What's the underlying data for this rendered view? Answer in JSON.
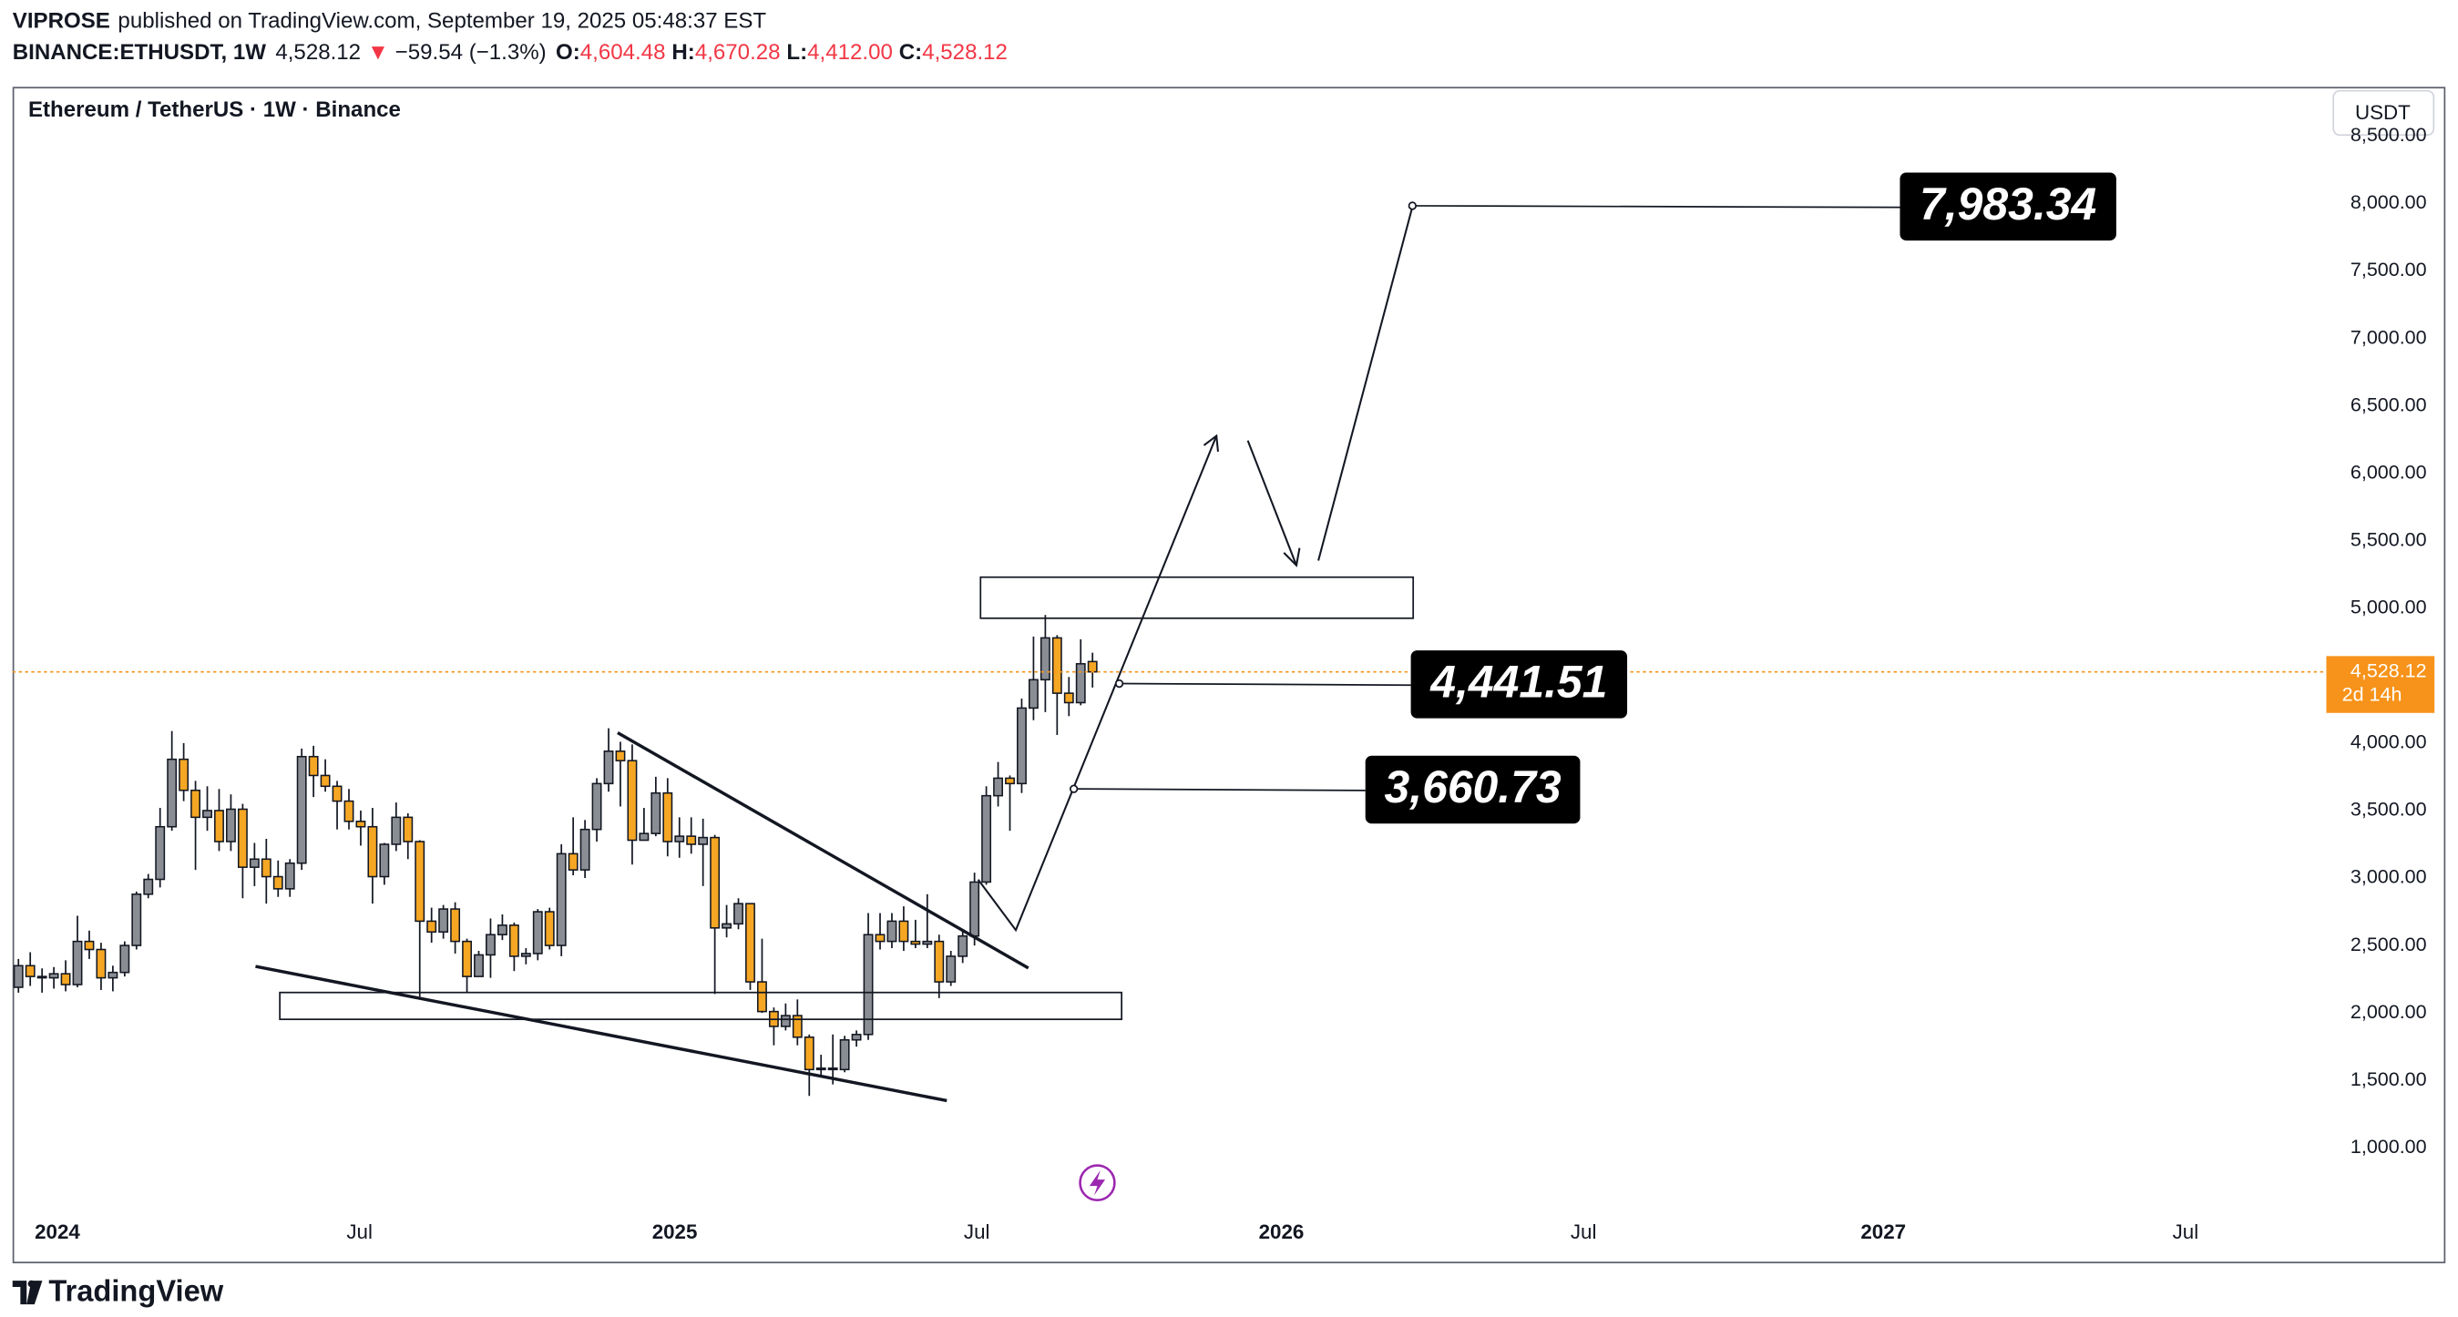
{
  "header": {
    "author": "VIPROSE",
    "published": "published on TradingView.com, September 19, 2025 05:48:37 EST",
    "symbol": "BINANCE:ETHUSDT, 1W",
    "last": "4,528.12",
    "change_arrow": "▼",
    "change": "−59.54 (−1.3%)",
    "ohlc": [
      {
        "label": "O:",
        "value": "4,604.48"
      },
      {
        "label": "H:",
        "value": "4,670.28"
      },
      {
        "label": "L:",
        "value": "4,412.00"
      },
      {
        "label": "C:",
        "value": "4,528.12"
      }
    ]
  },
  "chart_data": {
    "type": "candlestick",
    "title": "Ethereum / TetherUS · 1W · Binance",
    "currency": "USDT",
    "open": [
      2190,
      2350,
      2270,
      2260,
      2290,
      2210,
      2530,
      2470,
      2260,
      2300,
      2500,
      2880,
      2990,
      3380,
      3880,
      3650,
      3450,
      3500,
      3270,
      3510,
      3080,
      3140,
      3010,
      2920,
      3110,
      3900,
      3760,
      3680,
      3570,
      3420,
      3380,
      3010,
      3250,
      3450,
      3270,
      2680,
      2600,
      2770,
      2530,
      2270,
      2430,
      2580,
      2650,
      2420,
      2440,
      2750,
      2500,
      3180,
      3060,
      3360,
      3700,
      3940,
      3870,
      3280,
      3330,
      3630,
      3270,
      3310,
      3250,
      3300,
      2630,
      2660,
      2810,
      2230,
      2010,
      1900,
      1980,
      1820,
      1580,
      1590,
      1580,
      1800,
      1840,
      2580,
      2530,
      2680,
      2530,
      2510,
      2530,
      2230,
      2420,
      2570,
      2970,
      3610,
      3740,
      3700,
      4260,
      4470,
      4780,
      4370,
      4300,
      4604.48
    ],
    "high": [
      2400,
      2450,
      2330,
      2340,
      2390,
      2720,
      2610,
      2520,
      2350,
      2530,
      2900,
      3030,
      3520,
      4090,
      4000,
      3720,
      3680,
      3660,
      3620,
      3550,
      3260,
      3290,
      3130,
      3140,
      3960,
      3980,
      3880,
      3720,
      3660,
      3500,
      3520,
      3260,
      3560,
      3480,
      3280,
      2780,
      2800,
      2820,
      2550,
      2460,
      2700,
      2730,
      2670,
      2480,
      2770,
      2780,
      3250,
      3450,
      3430,
      3740,
      4110,
      4010,
      3990,
      3520,
      3750,
      3740,
      3450,
      3450,
      3440,
      3320,
      2800,
      2850,
      2810,
      2550,
      2040,
      2070,
      2100,
      1840,
      1690,
      1840,
      1830,
      1870,
      2740,
      2740,
      2740,
      2790,
      2690,
      2880,
      2580,
      2460,
      2620,
      3040,
      3680,
      3860,
      3760,
      4330,
      4790,
      4950,
      4800,
      4490,
      4770,
      4670.28
    ],
    "low": [
      2150,
      2200,
      2150,
      2180,
      2160,
      2190,
      2400,
      2170,
      2160,
      2270,
      2470,
      2850,
      2930,
      3350,
      3570,
      3060,
      3350,
      3200,
      3200,
      2850,
      2940,
      2810,
      2860,
      2860,
      3060,
      3600,
      3640,
      3360,
      3360,
      3240,
      2810,
      2950,
      3200,
      3140,
      2120,
      2520,
      2550,
      2440,
      2150,
      2270,
      2260,
      2540,
      2310,
      2360,
      2390,
      2470,
      2420,
      3020,
      3000,
      3270,
      3640,
      3530,
      3100,
      3280,
      3310,
      3160,
      3150,
      3180,
      2940,
      2140,
      2560,
      2620,
      2170,
      2000,
      1760,
      1870,
      1760,
      1385,
      1540,
      1470,
      1560,
      1750,
      1800,
      2470,
      2480,
      2460,
      2480,
      2480,
      2110,
      2200,
      2370,
      2500,
      2950,
      3530,
      3350,
      3630,
      4170,
      4230,
      4060,
      4200,
      4280,
      4412
    ],
    "close": [
      2350,
      2270,
      2260,
      2290,
      2210,
      2530,
      2470,
      2260,
      2300,
      2500,
      2880,
      2990,
      3380,
      3880,
      3650,
      3450,
      3500,
      3270,
      3510,
      3080,
      3140,
      3010,
      2920,
      3110,
      3900,
      3760,
      3680,
      3570,
      3420,
      3380,
      3010,
      3250,
      3450,
      3270,
      2680,
      2600,
      2770,
      2530,
      2270,
      2430,
      2580,
      2650,
      2420,
      2440,
      2750,
      2500,
      3180,
      3060,
      3360,
      3700,
      3940,
      3870,
      3280,
      3330,
      3630,
      3270,
      3310,
      3250,
      3300,
      2630,
      2660,
      2810,
      2230,
      2010,
      1900,
      1980,
      1820,
      1580,
      1590,
      1580,
      1800,
      1840,
      2580,
      2530,
      2680,
      2530,
      2510,
      2530,
      2230,
      2420,
      2570,
      2970,
      3610,
      3740,
      3700,
      4260,
      4470,
      4780,
      4370,
      4300,
      4588,
      4528.12
    ],
    "up_color": "#8a8d93",
    "down_color": "#f5a623",
    "xlim": [
      -0.5,
      195
    ],
    "xticks": [
      {
        "value": 3.3,
        "label": "2024"
      },
      {
        "value": 28.9,
        "label": "Jul"
      },
      {
        "value": 55.6,
        "label": "2025"
      },
      {
        "value": 81.2,
        "label": "Jul"
      },
      {
        "value": 107,
        "label": "2026"
      },
      {
        "value": 132.6,
        "label": "Jul"
      },
      {
        "value": 158,
        "label": "2027"
      },
      {
        "value": 183.6,
        "label": "Jul"
      }
    ],
    "ylim": [
      530,
      8865
    ],
    "yticks": [
      {
        "value": 1000,
        "label": "1,000.00"
      },
      {
        "value": 1500,
        "label": "1,500.00"
      },
      {
        "value": 2000,
        "label": "2,000.00"
      },
      {
        "value": 2500,
        "label": "2,500.00"
      },
      {
        "value": 3000,
        "label": "3,000.00"
      },
      {
        "value": 3500,
        "label": "3,500.00"
      },
      {
        "value": 4000,
        "label": "4,000.00"
      },
      {
        "value": 4500,
        "label": "4,500.00"
      },
      {
        "value": 5000,
        "label": "5,000.00"
      },
      {
        "value": 5500,
        "label": "5,500.00"
      },
      {
        "value": 6000,
        "label": "6,000.00"
      },
      {
        "value": 6500,
        "label": "6,500.00"
      },
      {
        "value": 7000,
        "label": "7,000.00"
      },
      {
        "value": 7500,
        "label": "7,500.00"
      },
      {
        "value": 8000,
        "label": "8,000.00"
      },
      {
        "value": 8500,
        "label": "8,500.00"
      }
    ],
    "last_price": {
      "label": "4,528.12",
      "countdown": "2d 14h",
      "color": "#f7931a"
    },
    "annotations": [
      {
        "value": 7983.34,
        "label": "7,983.34"
      },
      {
        "value": 4441.51,
        "label": "4,441.51"
      },
      {
        "value": 3660.73,
        "label": "3,660.73"
      }
    ]
  },
  "footer": {
    "logo": "TradingView"
  }
}
